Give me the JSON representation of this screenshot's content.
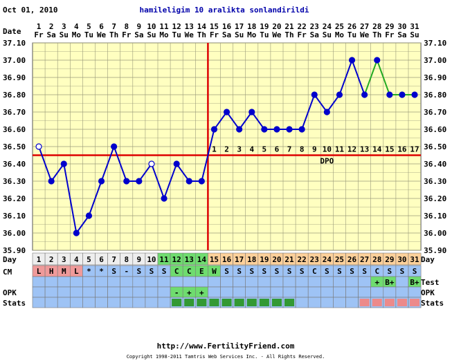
{
  "header": {
    "start_date": "Oct 01, 2010",
    "title": "hamileligim 10 aralikta sonlandirildi"
  },
  "row_labels": {
    "date": "Date",
    "day": "Day",
    "cm": "CM",
    "test": "Test",
    "opk": "OPK",
    "stats": "Stats"
  },
  "dpo_label": "DPO",
  "footer": {
    "url": "http://www.FertilityFriend.com",
    "copyright": "Copyright 1998-2011 Tamtris Web Services Inc. - All Rights Reserved."
  },
  "colors": {
    "grid_bg": "#ffffc0",
    "grid_line": "#9a9a7a",
    "temp_line": "#0000cc",
    "pregnancy_line": "#22aa22",
    "coverline": "#dd0000",
    "ovulation_line": "#dd0000",
    "period_cell": "#ef9a9a",
    "fertile_cell": "#6fdc6f",
    "luteal_cell": "#fdd09a",
    "follicular_cell": "#eeeeee",
    "blue_row": "#9ec3f5",
    "stats_green": "#339933",
    "stats_pink": "#ec8a8a"
  },
  "chart_data": {
    "type": "line",
    "title": "hamileligim 10 aralikta sonlandirildi",
    "x": [
      1,
      2,
      3,
      4,
      5,
      6,
      7,
      8,
      9,
      10,
      11,
      12,
      13,
      14,
      15,
      16,
      17,
      18,
      19,
      20,
      21,
      22,
      23,
      24,
      25,
      26,
      27,
      28,
      29,
      30,
      31
    ],
    "dates": [
      "1",
      "2",
      "3",
      "4",
      "5",
      "6",
      "7",
      "8",
      "9",
      "10",
      "11",
      "12",
      "13",
      "14",
      "15",
      "16",
      "17",
      "18",
      "19",
      "20",
      "21",
      "22",
      "23",
      "24",
      "25",
      "26",
      "27",
      "28",
      "29",
      "30",
      "31"
    ],
    "weekdays": [
      "Fr",
      "Sa",
      "Su",
      "Mo",
      "Tu",
      "We",
      "Th",
      "Fr",
      "Sa",
      "Su",
      "Mo",
      "Tu",
      "We",
      "Th",
      "Fr",
      "Sa",
      "Su",
      "Mo",
      "Tu",
      "We",
      "Th",
      "Fr",
      "Sa",
      "Su",
      "Mo",
      "Tu",
      "We",
      "Th",
      "Fr",
      "Sa",
      "Su"
    ],
    "temperatures": [
      36.5,
      36.3,
      36.4,
      36.0,
      36.1,
      36.3,
      36.5,
      36.3,
      36.3,
      36.4,
      36.2,
      36.4,
      36.3,
      36.3,
      36.6,
      36.7,
      36.6,
      36.7,
      36.6,
      36.6,
      36.6,
      36.6,
      36.8,
      36.7,
      36.8,
      37.0,
      36.8,
      37.0,
      36.8,
      36.8,
      36.8
    ],
    "open_point_days": [
      1,
      10
    ],
    "pregnancy_segment_days": [
      27,
      28,
      29
    ],
    "coverline": 36.45,
    "ovulation_day": 14,
    "dpo_numbers": [
      "1",
      "2",
      "3",
      "4",
      "5",
      "6",
      "7",
      "8",
      "9",
      "10",
      "11",
      "12",
      "13",
      "14",
      "15",
      "16",
      "17"
    ],
    "y_ticks": [
      "37.10",
      "37.00",
      "36.90",
      "36.80",
      "36.70",
      "36.60",
      "36.50",
      "36.40",
      "36.30",
      "36.20",
      "36.10",
      "36.00",
      "35.90"
    ],
    "ylim": [
      35.9,
      37.1
    ],
    "grid": true,
    "day_phases": [
      "f",
      "f",
      "f",
      "f",
      "f",
      "f",
      "f",
      "f",
      "f",
      "f",
      "o",
      "o",
      "o",
      "o",
      "l",
      "l",
      "l",
      "l",
      "l",
      "l",
      "l",
      "l",
      "l",
      "l",
      "l",
      "l",
      "l",
      "l",
      "l",
      "l",
      "l"
    ],
    "cycle_days": [
      "1",
      "2",
      "3",
      "4",
      "5",
      "6",
      "7",
      "8",
      "9",
      "10",
      "11",
      "12",
      "13",
      "14",
      "15",
      "16",
      "17",
      "18",
      "19",
      "20",
      "21",
      "22",
      "23",
      "24",
      "25",
      "26",
      "27",
      "28",
      "29",
      "30",
      "31"
    ],
    "cm": [
      "L",
      "H",
      "M",
      "L",
      "*",
      "*",
      "S",
      "-",
      "S",
      "S",
      "S",
      "C",
      "C",
      "E",
      "W",
      "S",
      "S",
      "S",
      "S",
      "S",
      "S",
      "S",
      "C",
      "S",
      "S",
      "S",
      "S",
      "C",
      "S",
      "S",
      "S"
    ],
    "test": [
      "",
      "",
      "",
      "",
      "",
      "",
      "",
      "",
      "",
      "",
      "",
      "",
      "",
      "",
      "",
      "",
      "",
      "",
      "",
      "",
      "",
      "",
      "",
      "",
      "",
      "",
      "",
      "+",
      "B+",
      "",
      "B+"
    ],
    "opk": [
      "",
      "",
      "",
      "",
      "",
      "",
      "",
      "",
      "",
      "",
      "",
      "-",
      "+",
      "+",
      "",
      "",
      "",
      "",
      "",
      "",
      "",
      "",
      "",
      "",
      "",
      "",
      "",
      "",
      "",
      "",
      ""
    ],
    "stats": [
      "",
      "",
      "",
      "",
      "",
      "",
      "",
      "",
      "",
      "",
      "",
      "g",
      "g",
      "g",
      "g",
      "g",
      "g",
      "g",
      "g",
      "g",
      "g",
      "",
      "",
      "",
      "",
      "",
      "p",
      "p",
      "p",
      "p",
      "p"
    ]
  }
}
